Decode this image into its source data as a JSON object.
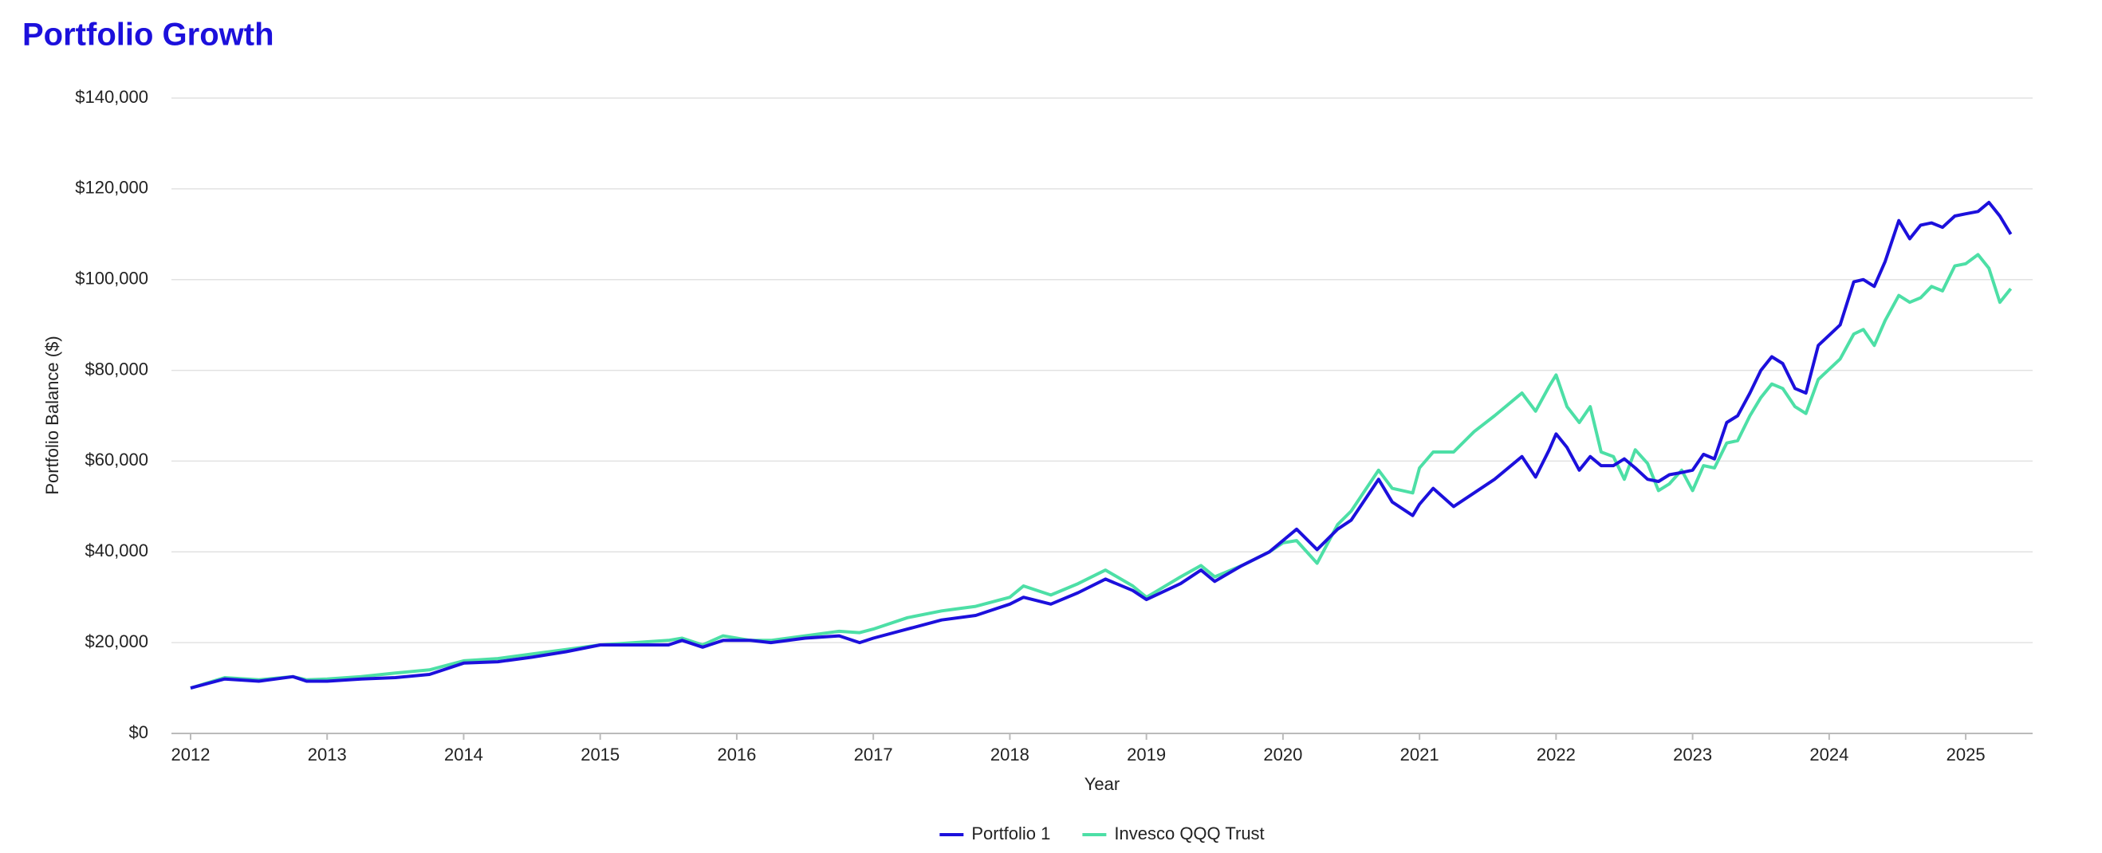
{
  "chart_data": {
    "type": "line",
    "title": "Portfolio Growth",
    "x_label": "Year",
    "y_label": "Portfolio Balance ($)",
    "x": [
      2012.0,
      2012.25,
      2012.5,
      2012.75,
      2012.85,
      2013.0,
      2013.25,
      2013.5,
      2013.75,
      2014.0,
      2014.25,
      2014.5,
      2014.75,
      2015.0,
      2015.25,
      2015.5,
      2015.6,
      2015.75,
      2015.9,
      2016.1,
      2016.25,
      2016.5,
      2016.75,
      2016.9,
      2017.0,
      2017.25,
      2017.5,
      2017.75,
      2018.0,
      2018.1,
      2018.3,
      2018.5,
      2018.7,
      2018.9,
      2019.0,
      2019.25,
      2019.4,
      2019.5,
      2019.7,
      2019.9,
      2020.0,
      2020.1,
      2020.25,
      2020.4,
      2020.5,
      2020.7,
      2020.8,
      2020.95,
      2021.0,
      2021.1,
      2021.25,
      2021.4,
      2021.55,
      2021.75,
      2021.85,
      2021.95,
      2022.0,
      2022.08,
      2022.17,
      2022.25,
      2022.33,
      2022.42,
      2022.5,
      2022.58,
      2022.67,
      2022.75,
      2022.83,
      2022.92,
      2023.0,
      2023.08,
      2023.16,
      2023.25,
      2023.33,
      2023.42,
      2023.5,
      2023.58,
      2023.66,
      2023.75,
      2023.83,
      2023.92,
      2024.08,
      2024.18,
      2024.25,
      2024.33,
      2024.41,
      2024.51,
      2024.59,
      2024.67,
      2024.75,
      2024.83,
      2024.92,
      2025.0,
      2025.09,
      2025.17,
      2025.25,
      2025.33
    ],
    "series": [
      {
        "name": "Portfolio 1",
        "color": "#1c10dc",
        "values": [
          10000,
          12000,
          11500,
          12500,
          11500,
          11500,
          12000,
          12300,
          13000,
          15500,
          15800,
          16800,
          18000,
          19500,
          19500,
          19500,
          20500,
          19000,
          20500,
          20500,
          20000,
          21000,
          21500,
          20000,
          21000,
          23000,
          25000,
          26000,
          28500,
          30000,
          28500,
          31000,
          34000,
          31500,
          29500,
          33000,
          36000,
          33500,
          37000,
          40000,
          42500,
          45000,
          40500,
          45000,
          47000,
          56000,
          51000,
          48000,
          50500,
          54000,
          50000,
          53000,
          56000,
          61000,
          56500,
          62500,
          66000,
          63000,
          58000,
          61000,
          59000,
          59000,
          60500,
          58500,
          56000,
          55500,
          57000,
          57500,
          58000,
          61500,
          60500,
          68500,
          70000,
          75000,
          80000,
          83000,
          81500,
          76000,
          75000,
          85500,
          90000,
          99500,
          100000,
          98500,
          104000,
          113000,
          109000,
          112000,
          112500,
          111500,
          114000,
          114500,
          115000,
          117000,
          114000,
          110000
        ]
      },
      {
        "name": "Invesco QQQ Trust",
        "color": "#4ddfa6",
        "values": [
          10000,
          12300,
          11800,
          12500,
          11800,
          12000,
          12500,
          13300,
          14000,
          16000,
          16500,
          17500,
          18500,
          19500,
          20000,
          20500,
          21000,
          19500,
          21500,
          20500,
          20500,
          21500,
          22500,
          22200,
          23000,
          25500,
          27000,
          28000,
          30000,
          32500,
          30500,
          33000,
          36000,
          32500,
          30000,
          34500,
          37000,
          34500,
          37000,
          40000,
          42000,
          42500,
          37500,
          46000,
          49000,
          58000,
          54000,
          53000,
          58500,
          62000,
          62000,
          66500,
          70000,
          75000,
          71000,
          76500,
          79000,
          72000,
          68500,
          72000,
          62000,
          61000,
          56000,
          62500,
          59500,
          53500,
          55000,
          58000,
          53500,
          59000,
          58500,
          64000,
          64500,
          70000,
          74000,
          77000,
          76000,
          72000,
          70500,
          78000,
          82500,
          88000,
          89000,
          85500,
          91000,
          96500,
          95000,
          96000,
          98500,
          97500,
          103000,
          103500,
          105500,
          102500,
          95000,
          98000
        ]
      }
    ],
    "xlim": [
      2011.86,
      2025.49
    ],
    "xticks": [
      2012,
      2013,
      2014,
      2015,
      2016,
      2017,
      2018,
      2019,
      2020,
      2021,
      2022,
      2023,
      2024,
      2025
    ],
    "ylim": [
      0,
      140000
    ],
    "yticks": [
      {
        "value": 0,
        "label": "$0"
      },
      {
        "value": 20000,
        "label": "$20,000"
      },
      {
        "value": 40000,
        "label": "$40,000"
      },
      {
        "value": 60000,
        "label": "$60,000"
      },
      {
        "value": 80000,
        "label": "$80,000"
      },
      {
        "value": 100000,
        "label": "$100,000"
      },
      {
        "value": 120000,
        "label": "$120,000"
      },
      {
        "value": 140000,
        "label": "$140,000"
      }
    ],
    "grid": true,
    "legend": "bottom"
  }
}
